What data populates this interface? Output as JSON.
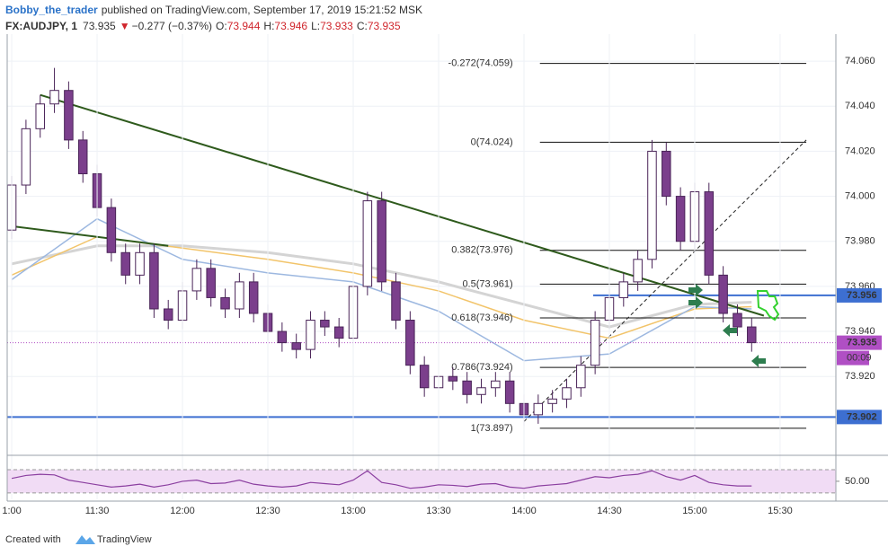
{
  "header": {
    "author": "Bobby_the_trader",
    "published": "published on TradingView.com, September 17, 2019 15:21:52 MSK",
    "symbol": "FX:AUDJPY, 1",
    "last": "73.935",
    "change_arrow": "▼",
    "change": "−0.277 (−0.37%)",
    "o_label": "O:",
    "o": "73.944",
    "h_label": "H:",
    "h": "73.946",
    "l_label": "L:",
    "l": "73.933",
    "c_label": "C:",
    "c": "73.935"
  },
  "chart_data": [
    {
      "type": "candlestick",
      "x": [
        660,
        665,
        670,
        675,
        680,
        685,
        690,
        695,
        700,
        705,
        710,
        715,
        720,
        725,
        730,
        735,
        740,
        745,
        750,
        755,
        760,
        765,
        770,
        775,
        780,
        785,
        790,
        795,
        800,
        805,
        810,
        815,
        820,
        825,
        830,
        835,
        840,
        845,
        850,
        855,
        860,
        865,
        870,
        875,
        880,
        885,
        890,
        895,
        900,
        905,
        910,
        915,
        920
      ],
      "open": [
        73.985,
        74.005,
        74.03,
        74.041,
        74.047,
        74.025,
        74.01,
        73.995,
        73.975,
        73.965,
        73.975,
        73.95,
        73.945,
        73.958,
        73.968,
        73.955,
        73.95,
        73.962,
        73.948,
        73.94,
        73.935,
        73.932,
        73.945,
        73.942,
        73.937,
        73.96,
        73.998,
        73.962,
        73.945,
        73.925,
        73.915,
        73.92,
        73.918,
        73.912,
        73.915,
        73.918,
        73.908,
        73.903,
        73.908,
        73.91,
        73.915,
        73.925,
        73.945,
        73.955,
        73.962,
        73.972,
        74.02,
        74.0,
        73.98,
        74.002,
        73.965,
        73.948,
        73.942
      ],
      "high": [
        74.009,
        74.034,
        74.045,
        74.057,
        74.051,
        74.029,
        74.014,
        73.999,
        73.979,
        73.979,
        73.979,
        73.954,
        73.962,
        73.972,
        73.972,
        73.959,
        73.966,
        73.966,
        73.952,
        73.944,
        73.939,
        73.949,
        73.949,
        73.946,
        73.964,
        74.002,
        74.002,
        73.966,
        73.949,
        73.929,
        73.924,
        73.924,
        73.922,
        73.919,
        73.922,
        73.922,
        73.912,
        73.912,
        73.914,
        73.919,
        73.929,
        73.949,
        73.959,
        73.966,
        73.976,
        74.025,
        74.024,
        74.004,
        74.006,
        74.006,
        73.969,
        73.952,
        73.946
      ],
      "low": [
        73.981,
        74.001,
        74.026,
        74.037,
        74.021,
        74.006,
        73.991,
        73.971,
        73.961,
        73.961,
        73.946,
        73.941,
        73.941,
        73.954,
        73.951,
        73.946,
        73.946,
        73.944,
        73.936,
        73.931,
        73.928,
        73.928,
        73.938,
        73.933,
        73.933,
        73.956,
        73.958,
        73.941,
        73.921,
        73.911,
        73.911,
        73.914,
        73.908,
        73.908,
        73.911,
        73.904,
        73.898,
        73.899,
        73.904,
        73.906,
        73.911,
        73.921,
        73.941,
        73.951,
        73.958,
        73.968,
        73.996,
        73.976,
        73.976,
        73.961,
        73.944,
        73.938,
        73.931
      ],
      "close": [
        74.005,
        74.03,
        74.041,
        74.047,
        74.025,
        74.01,
        73.995,
        73.975,
        73.965,
        73.975,
        73.95,
        73.945,
        73.958,
        73.968,
        73.955,
        73.95,
        73.962,
        73.948,
        73.94,
        73.935,
        73.932,
        73.945,
        73.942,
        73.937,
        73.96,
        73.998,
        73.962,
        73.945,
        73.925,
        73.915,
        73.92,
        73.918,
        73.912,
        73.915,
        73.918,
        73.908,
        73.903,
        73.908,
        73.91,
        73.915,
        73.925,
        73.945,
        73.955,
        73.962,
        73.972,
        74.02,
        74.0,
        73.98,
        74.002,
        73.965,
        73.948,
        73.942,
        73.935
      ],
      "up_color": "#ffffff",
      "down_color": "#7b3f8c",
      "wick_color": "#4a2458",
      "xlim": [
        658.4,
        949.6
      ],
      "xticks": [
        {
          "value": 660,
          "label": "1:00"
        },
        {
          "value": 690,
          "label": "11:30"
        },
        {
          "value": 720,
          "label": "12:00"
        },
        {
          "value": 750,
          "label": "12:30"
        },
        {
          "value": 780,
          "label": "13:00"
        },
        {
          "value": 810,
          "label": "13:30"
        },
        {
          "value": 840,
          "label": "14:00"
        },
        {
          "value": 870,
          "label": "14:30"
        },
        {
          "value": 900,
          "label": "15:00"
        },
        {
          "value": 930,
          "label": "15:30"
        }
      ],
      "ylim": [
        73.885,
        74.072
      ],
      "yticks": [
        {
          "value": 74.06,
          "label": "74.060"
        },
        {
          "value": 74.04,
          "label": "74.040"
        },
        {
          "value": 74.02,
          "label": "74.020"
        },
        {
          "value": 74.0,
          "label": "74.000"
        },
        {
          "value": 73.98,
          "label": "73.980"
        },
        {
          "value": 73.96,
          "label": "73.960"
        },
        {
          "value": 73.94,
          "label": "73.940"
        },
        {
          "value": 73.92,
          "label": "73.920"
        }
      ],
      "grid": true,
      "moving_averages": [
        {
          "color": "#d4d4d4",
          "x": [
            660,
            690,
            720,
            750,
            780,
            810,
            840,
            870,
            900,
            920
          ],
          "values": [
            73.97,
            73.978,
            73.978,
            73.975,
            73.97,
            73.962,
            73.952,
            73.942,
            73.952,
            73.953
          ]
        },
        {
          "color": "#f2c46a",
          "x": [
            660,
            690,
            720,
            750,
            780,
            810,
            840,
            870,
            900,
            920
          ],
          "values": [
            73.965,
            73.982,
            73.977,
            73.972,
            73.966,
            73.958,
            73.945,
            73.937,
            73.95,
            73.951
          ]
        },
        {
          "color": "#9db8e0",
          "x": [
            660,
            690,
            720,
            750,
            780,
            810,
            840,
            870,
            900,
            920
          ],
          "values": [
            73.963,
            73.99,
            73.972,
            73.966,
            73.962,
            73.949,
            73.927,
            73.93,
            73.951,
            73.95
          ]
        }
      ],
      "fib_x": [
        845.6,
        939.2
      ],
      "fib_levels": [
        {
          "label": "-0.272(74.059)",
          "value": 74.059
        },
        {
          "label": "0(74.024)",
          "value": 74.024
        },
        {
          "label": "0.382(73.976)",
          "value": 73.976
        },
        {
          "label": "0.5(73.961)",
          "value": 73.961
        },
        {
          "label": "0.618(73.946)",
          "value": 73.946
        },
        {
          "label": "0.786(73.924)",
          "value": 73.924
        },
        {
          "label": "1(73.897)",
          "value": 73.897
        }
      ],
      "trendlines": [
        {
          "color": "#2e5a1c",
          "dash": false,
          "x": [
            670,
            924.3
          ],
          "values": [
            74.045,
            73.947
          ]
        },
        {
          "color": "#2e5a1c",
          "dash": false,
          "x": [
            658.4,
            715
          ],
          "values": [
            73.987,
            73.978
          ]
        },
        {
          "color": "#222222",
          "dash": true,
          "x": [
            840,
            939.2
          ],
          "values": [
            73.9,
            74.025
          ]
        }
      ],
      "horizontal_lines": [
        {
          "color": "#3d6fd1",
          "from": 864.3,
          "value": 73.956
        },
        {
          "color": "#3d6fd1",
          "from": 658.4,
          "value": 73.902
        }
      ],
      "price_tags": [
        {
          "value": 73.956,
          "color": "#3d6fd1"
        },
        {
          "value": 73.935,
          "color": "#b04fc4",
          "countdown": "00:09"
        },
        {
          "value": 73.902,
          "color": "#3d6fd1"
        }
      ]
    },
    {
      "type": "line",
      "color": "#8b3fa0",
      "x": [
        660,
        665,
        670,
        675,
        680,
        685,
        690,
        695,
        700,
        705,
        710,
        715,
        720,
        725,
        730,
        735,
        740,
        745,
        750,
        755,
        760,
        765,
        770,
        775,
        780,
        785,
        790,
        795,
        800,
        805,
        810,
        815,
        820,
        825,
        830,
        835,
        840,
        845,
        850,
        855,
        860,
        865,
        870,
        875,
        880,
        885,
        890,
        895,
        900,
        905,
        910,
        915,
        920
      ],
      "values": [
        55,
        60,
        62,
        61,
        52,
        48,
        44,
        40,
        42,
        45,
        40,
        44,
        50,
        52,
        46,
        47,
        52,
        45,
        42,
        40,
        42,
        48,
        46,
        44,
        52,
        68,
        48,
        44,
        38,
        40,
        44,
        43,
        41,
        45,
        46,
        40,
        38,
        42,
        44,
        46,
        52,
        58,
        56,
        60,
        62,
        68,
        58,
        52,
        60,
        48,
        44,
        42,
        42
      ],
      "band": [
        30,
        70
      ],
      "band_color": "#f1dcf5",
      "xlim": [
        658.4,
        949.6
      ],
      "ylim": [
        19,
        90
      ],
      "yticks": [
        {
          "value": 50,
          "label": "50.00"
        }
      ]
    }
  ],
  "footer": {
    "created": "Created with",
    "brand": "TradingView"
  }
}
